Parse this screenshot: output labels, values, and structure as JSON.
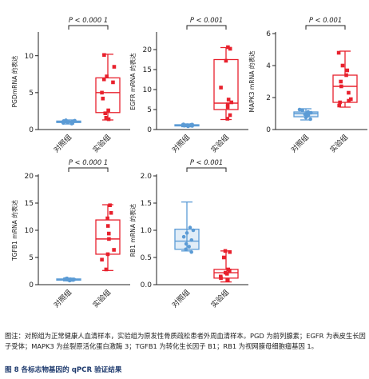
{
  "caption": {
    "note": "图注：对照组为正常健康人血清样本，实验组为原发性骨质疏松患者外周血清样本。PGD 为前列腺素；EGFR 为表皮生长因子受体；MAPK3 为丝裂原活化蛋白激酶 3；TGFB1 为转化生长因子 B1；RB1 为视网膜母细胞瘤基因 1。",
    "figure_title": "图 8  各标志物基因的 qPCR 验证结果"
  },
  "colors": {
    "control": "#5b9bd5",
    "experiment": "#e8212d",
    "axis": "#222222"
  },
  "chart_data": [
    {
      "type": "box",
      "name": "PGD",
      "ylabel": "PGDmRNA 的表达",
      "yticks": [
        0,
        5,
        10
      ],
      "ylim": [
        0,
        13
      ],
      "categories": [
        "对照组",
        "实验组"
      ],
      "significance": "P < 0.000 1",
      "groups": [
        {
          "category": "对照组",
          "min": 0.75,
          "q1": 0.95,
          "median": 1.05,
          "q3": 1.15,
          "max": 1.3,
          "points": [
            0.8,
            0.9,
            0.95,
            1.0,
            1.05,
            1.1,
            1.15,
            1.2,
            1.25,
            0.85
          ]
        },
        {
          "category": "实验组",
          "min": 1.3,
          "q1": 2.3,
          "median": 5.0,
          "q3": 7.0,
          "max": 10.2,
          "points": [
            1.4,
            1.6,
            2.2,
            2.6,
            4.2,
            5.0,
            6.4,
            6.8,
            7.2,
            8.5,
            10.1
          ]
        }
      ]
    },
    {
      "type": "box",
      "name": "EGFR",
      "ylabel": "EGFR mRNA 的表达",
      "yticks": [
        0,
        5,
        10,
        15,
        20
      ],
      "ylim": [
        0,
        24
      ],
      "categories": [
        "对照组",
        "实验组"
      ],
      "significance": "P < 0.001",
      "groups": [
        {
          "category": "对照组",
          "min": 0.7,
          "q1": 0.9,
          "median": 1.05,
          "q3": 1.2,
          "max": 1.4,
          "points": [
            0.8,
            0.9,
            1.0,
            1.05,
            1.1,
            1.2,
            1.25,
            1.3,
            0.95,
            1.15
          ]
        },
        {
          "category": "实验组",
          "min": 2.5,
          "q1": 5.0,
          "median": 6.6,
          "q3": 17.5,
          "max": 20.5,
          "points": [
            2.7,
            3.6,
            5.6,
            6.3,
            6.8,
            7.5,
            10.5,
            17.2,
            20.2,
            20.6
          ]
        }
      ]
    },
    {
      "type": "box",
      "name": "MAPK3",
      "ylabel": "MAPK3 mRNA 的表达",
      "yticks": [
        0,
        2,
        4,
        6
      ],
      "ylim": [
        0,
        6
      ],
      "categories": [
        "对照组",
        "实验组"
      ],
      "significance": "P < 0.001",
      "groups": [
        {
          "category": "对照组",
          "min": 0.6,
          "q1": 0.8,
          "median": 1.0,
          "q3": 1.1,
          "max": 1.3,
          "points": [
            0.65,
            0.75,
            0.85,
            0.95,
            1.0,
            1.05,
            1.1,
            1.2,
            1.25,
            0.9
          ]
        },
        {
          "category": "实验组",
          "min": 1.4,
          "q1": 1.7,
          "median": 2.7,
          "q3": 3.4,
          "max": 4.9,
          "points": [
            1.5,
            1.7,
            1.8,
            1.9,
            2.3,
            2.7,
            3.0,
            3.4,
            3.7,
            4.0,
            4.8
          ]
        }
      ]
    },
    {
      "type": "box",
      "name": "TGFB1",
      "ylabel": "TGFB1 mRNA 的表达",
      "yticks": [
        0,
        5,
        10,
        15,
        20
      ],
      "ylim": [
        0,
        20
      ],
      "categories": [
        "对照组",
        "实验组"
      ],
      "significance": "P < 0.000 1",
      "groups": [
        {
          "category": "对照组",
          "min": 0.7,
          "q1": 0.85,
          "median": 0.95,
          "q3": 1.05,
          "max": 1.2,
          "points": [
            0.75,
            0.8,
            0.85,
            0.9,
            0.95,
            1.0,
            1.05,
            1.1,
            1.15,
            0.92
          ]
        },
        {
          "category": "实验组",
          "min": 2.6,
          "q1": 5.6,
          "median": 8.4,
          "q3": 11.9,
          "max": 14.7,
          "points": [
            2.8,
            4.6,
            5.6,
            6.4,
            8.4,
            9.4,
            10.8,
            12.2,
            13.2,
            14.6
          ]
        }
      ]
    },
    {
      "type": "box",
      "name": "RB1",
      "ylabel": "RB1 mRNA 的表达",
      "yticks": [
        0.0,
        0.5,
        1.0,
        1.5,
        2.0
      ],
      "ylim": [
        0,
        2
      ],
      "categories": [
        "对照组",
        "实验组"
      ],
      "significance": "P < 0.001",
      "groups": [
        {
          "category": "对照组",
          "min": 0.62,
          "q1": 0.65,
          "median": 0.8,
          "q3": 1.02,
          "max": 1.52,
          "points": [
            0.6,
            0.65,
            0.7,
            0.75,
            0.82,
            0.88,
            0.95,
            1.0,
            1.05
          ]
        },
        {
          "category": "实验组",
          "min": 0.05,
          "q1": 0.12,
          "median": 0.22,
          "q3": 0.28,
          "max": 0.62,
          "points": [
            0.08,
            0.12,
            0.15,
            0.2,
            0.22,
            0.26,
            0.28,
            0.5,
            0.6,
            0.62
          ]
        }
      ]
    }
  ]
}
